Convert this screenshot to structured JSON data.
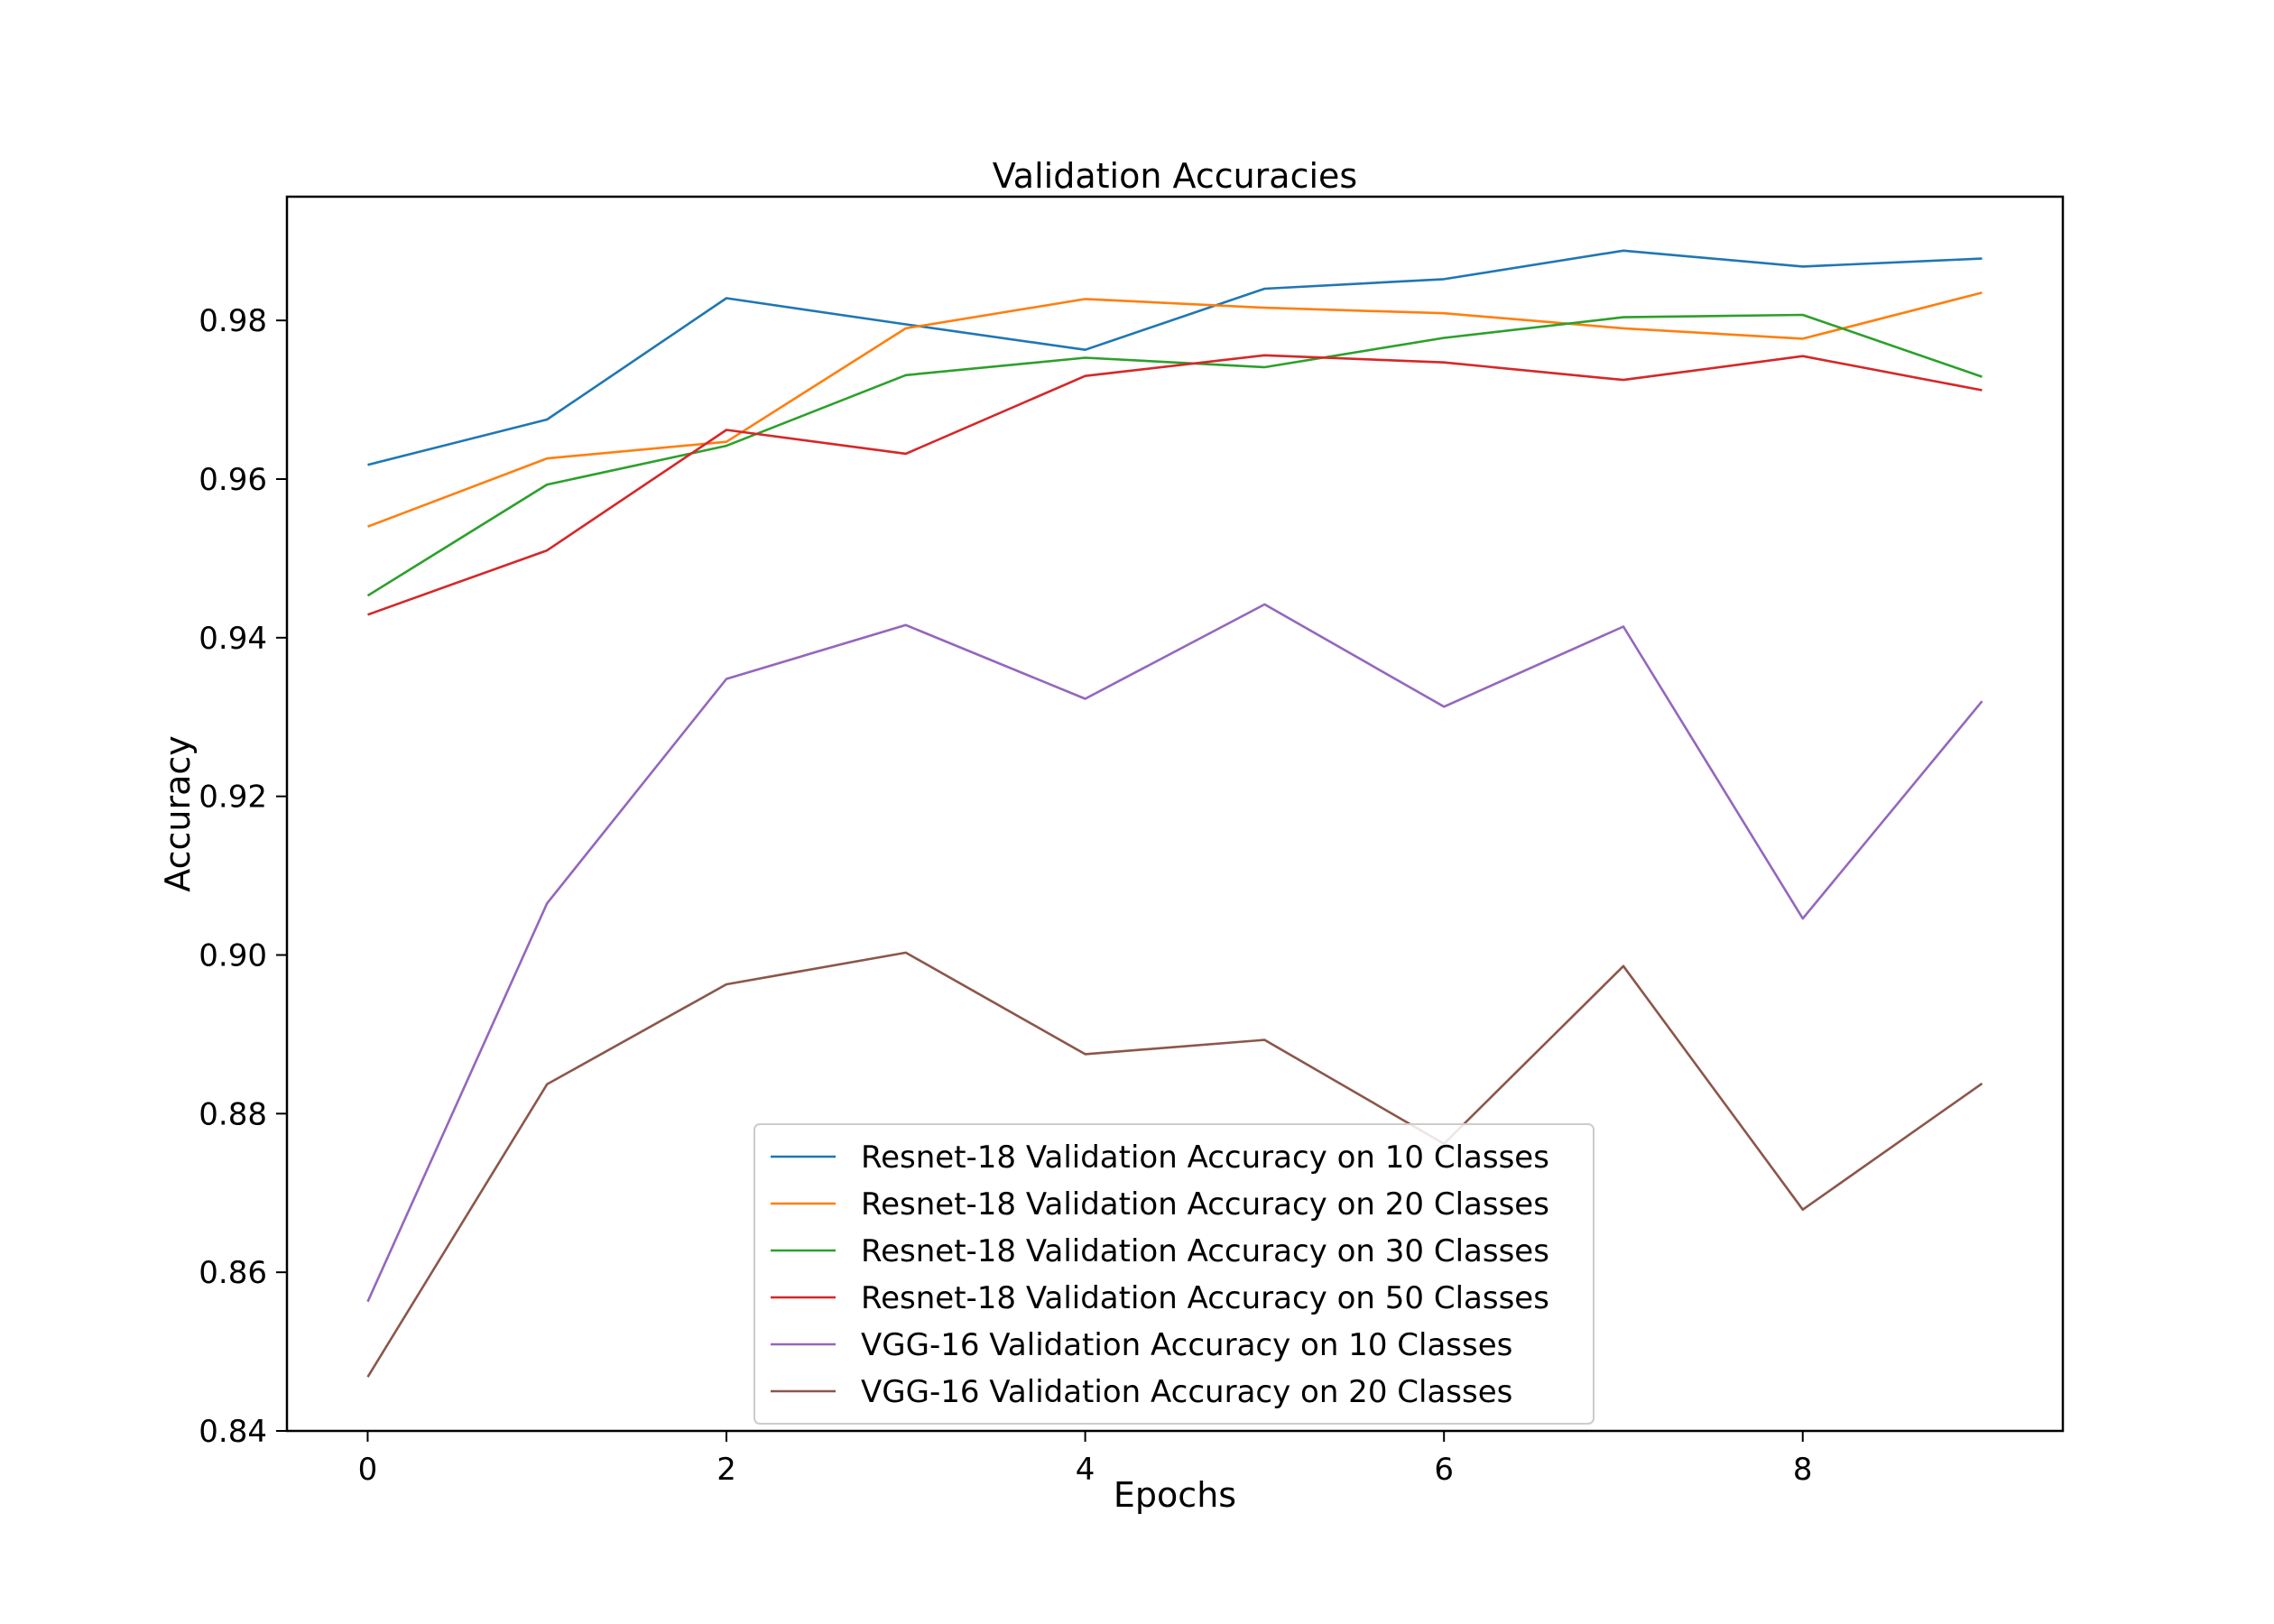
{
  "chart_data": {
    "type": "line",
    "title": "Validation Accuracies",
    "xlabel": "Epochs",
    "ylabel": "Accuracy",
    "xlim": [
      -0.45,
      9.45
    ],
    "ylim": [
      0.84,
      0.9956
    ],
    "xticks": [
      0,
      2,
      4,
      6,
      8
    ],
    "yticks": [
      0.84,
      0.86,
      0.88,
      0.9,
      0.92,
      0.94,
      0.96,
      0.98
    ],
    "xtick_labels": [
      "0",
      "2",
      "4",
      "6",
      "8"
    ],
    "ytick_labels": [
      "0.84",
      "0.86",
      "0.88",
      "0.90",
      "0.92",
      "0.94",
      "0.96",
      "0.98"
    ],
    "grid": false,
    "legend_position": "lower-center",
    "x": [
      0,
      1,
      2,
      3,
      4,
      5,
      6,
      7,
      8,
      9
    ],
    "series": [
      {
        "name": "Resnet-18 Validation Accuracy on 10 Classes",
        "color": "#1f77b4",
        "values": [
          0.9618,
          0.9675,
          0.9828,
          0.9795,
          0.9763,
          0.984,
          0.9852,
          0.9888,
          0.9868,
          0.9878
        ]
      },
      {
        "name": "Resnet-18 Validation Accuracy on 20 Classes",
        "color": "#ff7f0e",
        "values": [
          0.954,
          0.9626,
          0.9647,
          0.979,
          0.9827,
          0.9816,
          0.9809,
          0.979,
          0.9777,
          0.9835
        ]
      },
      {
        "name": "Resnet-18 Validation Accuracy on 30 Classes",
        "color": "#2ca02c",
        "values": [
          0.9453,
          0.9593,
          0.9642,
          0.9731,
          0.9753,
          0.9741,
          0.9778,
          0.9804,
          0.9807,
          0.9729
        ]
      },
      {
        "name": "Resnet-18 Validation Accuracy on 50 Classes",
        "color": "#d62728",
        "values": [
          0.9429,
          0.951,
          0.9662,
          0.9632,
          0.973,
          0.9756,
          0.9747,
          0.9725,
          0.9755,
          0.9712
        ]
      },
      {
        "name": "VGG-16 Validation Accuracy on 10 Classes",
        "color": "#9467bd",
        "values": [
          0.8563,
          0.9065,
          0.9348,
          0.9416,
          0.9323,
          0.9442,
          0.9313,
          0.9414,
          0.9046,
          0.932
        ]
      },
      {
        "name": "VGG-16 Validation Accuracy on 20 Classes",
        "color": "#8c564b",
        "values": [
          0.8468,
          0.8837,
          0.8963,
          0.9003,
          0.8875,
          0.8893,
          0.8762,
          0.8986,
          0.8679,
          0.8838
        ]
      }
    ]
  }
}
